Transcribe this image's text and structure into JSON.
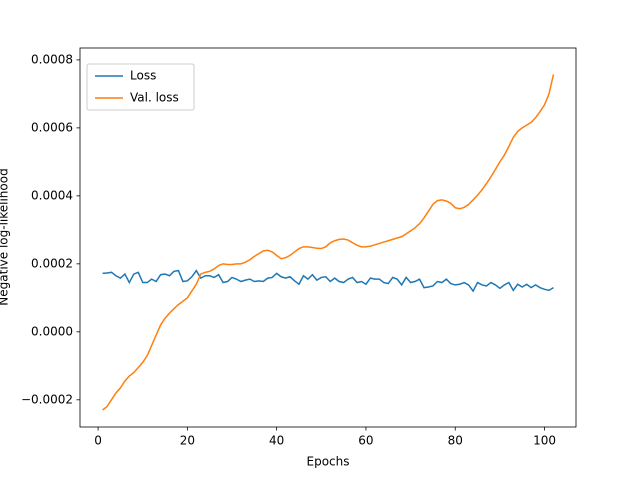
{
  "chart_data": {
    "type": "line",
    "xlabel": "Epochs",
    "ylabel": "Negative log-likelihood",
    "x": [
      1,
      2,
      3,
      4,
      5,
      6,
      7,
      8,
      9,
      10,
      11,
      12,
      13,
      14,
      15,
      16,
      17,
      18,
      19,
      20,
      21,
      22,
      23,
      24,
      25,
      26,
      27,
      28,
      29,
      30,
      31,
      32,
      33,
      34,
      35,
      36,
      37,
      38,
      39,
      40,
      41,
      42,
      43,
      44,
      45,
      46,
      47,
      48,
      49,
      50,
      51,
      52,
      53,
      54,
      55,
      56,
      57,
      58,
      59,
      60,
      61,
      62,
      63,
      64,
      65,
      66,
      67,
      68,
      69,
      70,
      71,
      72,
      73,
      74,
      75,
      76,
      77,
      78,
      79,
      80,
      81,
      82,
      83,
      84,
      85,
      86,
      87,
      88,
      89,
      90,
      91,
      92,
      93,
      94,
      95,
      96,
      97,
      98,
      99,
      100,
      101,
      102
    ],
    "series": [
      {
        "name": "Loss",
        "color": "#1f77b4",
        "values": [
          0.000172,
          0.000173,
          0.000175,
          0.000165,
          0.000158,
          0.00017,
          0.000145,
          0.00017,
          0.000175,
          0.000145,
          0.000145,
          0.000155,
          0.000148,
          0.000168,
          0.00017,
          0.000165,
          0.000178,
          0.00018,
          0.000148,
          0.00015,
          0.000162,
          0.00018,
          0.000158,
          0.000165,
          0.000165,
          0.00016,
          0.000168,
          0.000145,
          0.000148,
          0.00016,
          0.000155,
          0.000148,
          0.000152,
          0.000155,
          0.000148,
          0.00015,
          0.000148,
          0.000158,
          0.00016,
          0.000172,
          0.000162,
          0.000158,
          0.000162,
          0.00015,
          0.00014,
          0.000165,
          0.000155,
          0.000168,
          0.000152,
          0.00016,
          0.000162,
          0.000148,
          0.000158,
          0.000148,
          0.000145,
          0.000155,
          0.00016,
          0.000145,
          0.000148,
          0.00014,
          0.000158,
          0.000155,
          0.000155,
          0.000145,
          0.000142,
          0.00016,
          0.000155,
          0.000138,
          0.00016,
          0.000145,
          0.000148,
          0.000155,
          0.00013,
          0.000132,
          0.000135,
          0.000148,
          0.000145,
          0.000155,
          0.000142,
          0.000138,
          0.00014,
          0.000145,
          0.000138,
          0.00012,
          0.000145,
          0.000138,
          0.000135,
          0.000145,
          0.000138,
          0.000128,
          0.000138,
          0.000145,
          0.000122,
          0.00014,
          0.000132,
          0.00014,
          0.00013,
          0.000138,
          0.00013,
          0.000125,
          0.000122,
          0.00013
        ]
      },
      {
        "name": "Val. loss",
        "color": "#ff7f0e",
        "values": [
          -0.00023,
          -0.00022,
          -0.0002,
          -0.00018,
          -0.000165,
          -0.000145,
          -0.00013,
          -0.00012,
          -0.000105,
          -9e-05,
          -7e-05,
          -4e-05,
          -1e-05,
          2e-05,
          4e-05,
          5.5e-05,
          6.8e-05,
          8e-05,
          9e-05,
          0.0001,
          0.00012,
          0.00014,
          0.00017,
          0.000175,
          0.000178,
          0.000185,
          0.000195,
          0.0002,
          0.000198,
          0.000198,
          0.0002,
          0.0002,
          0.000205,
          0.000212,
          0.000222,
          0.00023,
          0.000238,
          0.00024,
          0.000235,
          0.000225,
          0.000215,
          0.000218,
          0.000225,
          0.000235,
          0.000245,
          0.00025,
          0.00025,
          0.000248,
          0.000246,
          0.000245,
          0.00025,
          0.000262,
          0.000268,
          0.000272,
          0.000273,
          0.00027,
          0.000262,
          0.000255,
          0.00025,
          0.00025,
          0.000252,
          0.000256,
          0.00026,
          0.000264,
          0.000268,
          0.000272,
          0.000276,
          0.00028,
          0.000288,
          0.000297,
          0.000306,
          0.000318,
          0.000335,
          0.000355,
          0.000375,
          0.000386,
          0.000388,
          0.000385,
          0.000378,
          0.000365,
          0.000362,
          0.000366,
          0.000375,
          0.000388,
          0.000402,
          0.000418,
          0.000436,
          0.000456,
          0.000478,
          0.0005,
          0.00052,
          0.000545,
          0.000572,
          0.00059,
          0.0006,
          0.000608,
          0.000616,
          0.00063,
          0.000648,
          0.000668,
          0.0007,
          0.000757
        ]
      }
    ],
    "xlim": [
      -4.05,
      107.05
    ],
    "xticks": [
      0,
      20,
      40,
      60,
      80,
      100
    ],
    "ylim": [
      -0.00028,
      0.000835
    ],
    "yticks": [
      {
        "value": -0.0002,
        "label": "−0.0002"
      },
      {
        "value": 0,
        "label": "0.0000"
      },
      0.0002,
      0.0004,
      0.0006,
      0.0008
    ],
    "legend": "upper left"
  }
}
